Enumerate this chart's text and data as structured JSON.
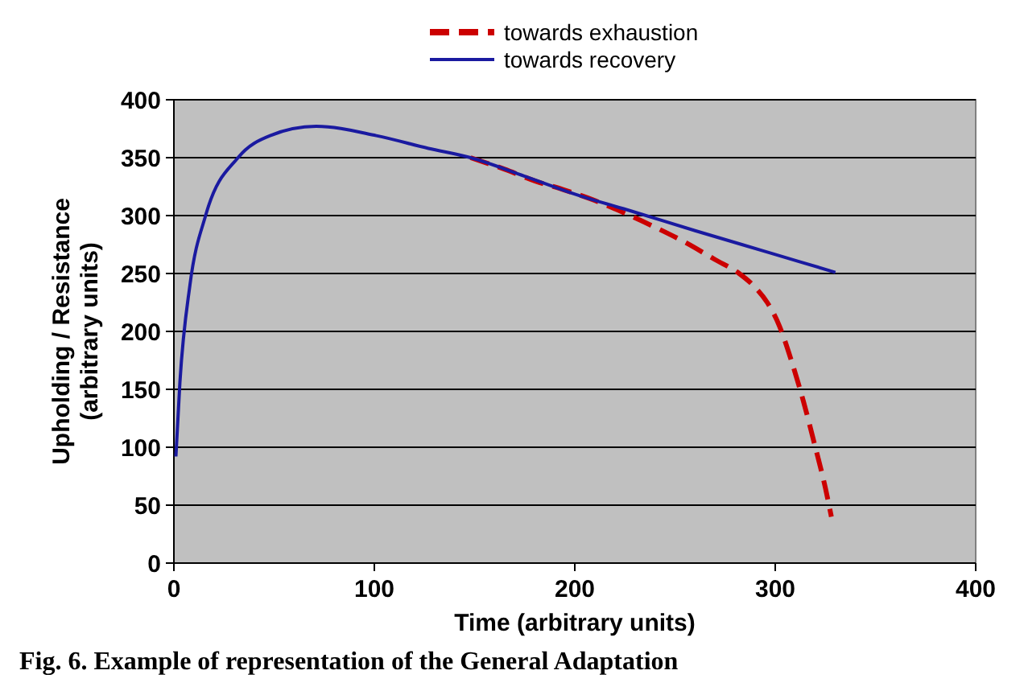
{
  "chart_data": {
    "type": "line",
    "xlabel": "Time  (arbitrary units)",
    "ylabel": "Upholding / Resistance  (arbitrary units)",
    "xlim": [
      0,
      400
    ],
    "xticks": [
      0,
      100,
      200,
      300,
      400
    ],
    "ylim": [
      0,
      400
    ],
    "yticks": [
      0,
      50,
      100,
      150,
      200,
      250,
      300,
      350,
      400
    ],
    "grid": "y",
    "legend": "top",
    "marker": "none",
    "series": [
      {
        "name": "towards exhaustion",
        "color": "#cc0000",
        "line_style": "dashed",
        "x": [
          148,
          165,
          180,
          195,
          210,
          225,
          240,
          255,
          270,
          282,
          290,
          296,
          302,
          308,
          314,
          320,
          325,
          328
        ],
        "values": [
          350,
          340,
          330,
          322,
          313,
          302,
          290,
          277,
          262,
          250,
          238,
          225,
          205,
          175,
          140,
          100,
          65,
          40
        ]
      },
      {
        "name": "towards recovery",
        "color": "#1a1aa0",
        "line_style": "solid",
        "x": [
          1,
          3,
          8,
          16,
          32,
          48,
          71,
          101,
          127,
          148,
          175,
          201,
          228,
          260,
          295,
          330
        ],
        "values": [
          92,
          156,
          240,
          301,
          350,
          369,
          377,
          369,
          358,
          350,
          334,
          318,
          304,
          287,
          269,
          251
        ]
      }
    ],
    "annotations": [
      "Fig. 6. Example of representation of the General Adaptation"
    ]
  }
}
